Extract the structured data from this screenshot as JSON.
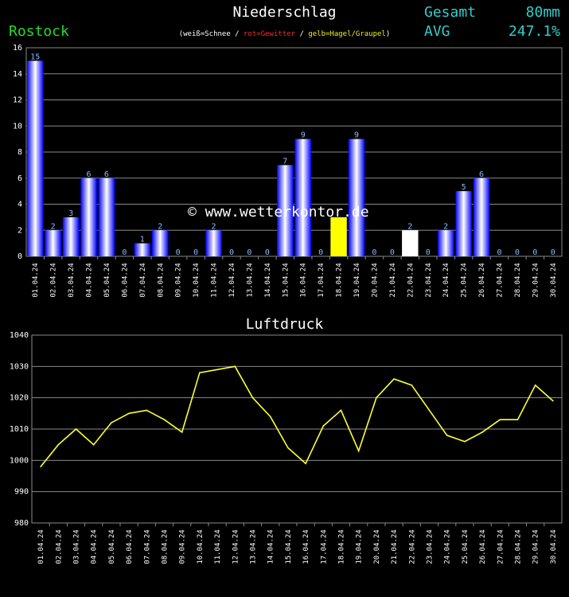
{
  "header": {
    "title": "Niederschlag",
    "station": "Rostock",
    "legend_open": "(",
    "legend_white": "weiß=Schnee",
    "legend_sep1": " / ",
    "legend_red": "rot=Gewitter",
    "legend_sep2": " / ",
    "legend_yellow": "gelb=Hagel/Graupel",
    "legend_close": ")",
    "gesamt_label": "Gesamt",
    "gesamt_value": "80mm",
    "avg_label": "AVG",
    "avg_value": "247.1%"
  },
  "watermark": "© www.wetterkontor.de",
  "pressure_title": "Luftdruck",
  "chart_data": [
    {
      "type": "bar",
      "title": "Niederschlag",
      "categories": [
        "01.04.24",
        "02.04.24",
        "03.04.24",
        "04.04.24",
        "05.04.24",
        "06.04.24",
        "07.04.24",
        "08.04.24",
        "09.04.24",
        "10.04.24",
        "11.04.24",
        "12.04.24",
        "13.04.24",
        "14.04.24",
        "15.04.24",
        "16.04.24",
        "17.04.24",
        "18.04.24",
        "19.04.24",
        "20.04.24",
        "21.04.24",
        "22.04.24",
        "23.04.24",
        "24.04.24",
        "25.04.24",
        "26.04.24",
        "27.04.24",
        "28.04.24",
        "29.04.24",
        "30.04.24"
      ],
      "values": [
        15,
        2,
        3,
        6,
        6,
        0,
        1,
        2,
        0,
        0,
        2,
        0,
        0,
        0,
        7,
        9,
        0,
        3,
        9,
        0,
        0,
        2,
        0,
        2,
        5,
        6,
        0,
        0,
        0,
        0
      ],
      "data_labels": [
        "15",
        "2",
        "3",
        "6",
        "6",
        "0",
        "1",
        "2",
        "0",
        "0",
        "2",
        "0",
        "0",
        "0",
        "7",
        "9",
        "0",
        "",
        "9",
        "0",
        "0",
        "2",
        "0",
        "2",
        "5",
        "6",
        "0",
        "0",
        "0",
        "0"
      ],
      "bar_kind": [
        "rain",
        "rain",
        "rain",
        "rain",
        "rain",
        "rain",
        "rain",
        "rain",
        "rain",
        "rain",
        "rain",
        "rain",
        "rain",
        "rain",
        "rain",
        "rain",
        "rain",
        "hail",
        "rain",
        "rain",
        "rain",
        "snow",
        "rain",
        "rain",
        "rain",
        "rain",
        "rain",
        "rain",
        "rain",
        "rain"
      ],
      "colors": {
        "rain": "#1a1aff",
        "hail": "#ffff00",
        "snow": "#ffffff"
      },
      "ylim": [
        0,
        16
      ],
      "yticks": [
        0,
        2,
        4,
        6,
        8,
        10,
        12,
        14,
        16
      ],
      "grid": true
    },
    {
      "type": "line",
      "title": "Luftdruck",
      "categories": [
        "01.04.24",
        "02.04.24",
        "03.04.24",
        "04.04.24",
        "05.04.24",
        "06.04.24",
        "07.04.24",
        "08.04.24",
        "09.04.24",
        "10.04.24",
        "11.04.24",
        "12.04.24",
        "13.04.24",
        "14.04.24",
        "15.04.24",
        "16.04.24",
        "17.04.24",
        "18.04.24",
        "19.04.24",
        "20.04.24",
        "21.04.24",
        "22.04.24",
        "23.04.24",
        "24.04.24",
        "25.04.24",
        "26.04.24",
        "27.04.24",
        "28.04.24",
        "29.04.24",
        "30.04.24"
      ],
      "values": [
        998,
        1005,
        1010,
        1005,
        1012,
        1015,
        1016,
        1013,
        1009,
        1028,
        1029,
        1030,
        1020,
        1014,
        1004,
        999,
        1011,
        1016,
        1003,
        1020,
        1026,
        1024,
        1016,
        1008,
        1006,
        1009,
        1013,
        1013,
        1024,
        1019
      ],
      "color": "#ffff33",
      "ylim": [
        980,
        1040
      ],
      "yticks": [
        980,
        990,
        1000,
        1010,
        1020,
        1030,
        1040
      ],
      "grid": true
    }
  ]
}
